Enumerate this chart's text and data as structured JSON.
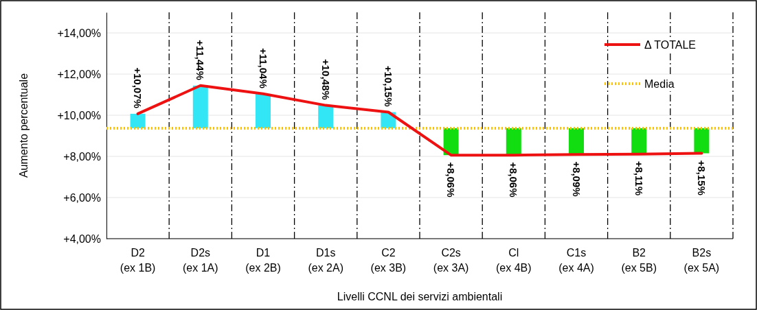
{
  "chart_data": {
    "type": "bar",
    "xlabel": "Livelli CCNL dei servizi ambientali",
    "ylabel": "Aumento percentuale",
    "categories": [
      "D2\n(ex 1B)",
      "D2s\n(ex 1A)",
      "D1\n(ex 2B)",
      "D1s\n(ex 2A)",
      "C2\n(ex 3B)",
      "C2s\n(ex 3A)",
      "Cl\n(ex 4B)",
      "C1s\n(ex 4A)",
      "B2\n(ex 5B)",
      "B2s\n(ex 5A)"
    ],
    "series": [
      {
        "base": [
          9.37,
          9.37,
          9.37,
          9.37,
          9.37,
          9.37,
          9.37,
          9.37,
          9.37,
          9.37
        ],
        "values": [
          0.7,
          2.07,
          1.67,
          1.11,
          0.78,
          -1.31,
          -1.31,
          -1.28,
          -1.26,
          -1.22
        ],
        "colors": [
          "#33e6f5",
          "#33e6f5",
          "#33e6f5",
          "#33e6f5",
          "#33e6f5",
          "#11dd11",
          "#11dd11",
          "#11dd11",
          "#11dd11",
          "#11dd11"
        ]
      },
      {
        "type": "line",
        "name": "Δ TOTALE",
        "color": "#ee1111",
        "values": [
          10.07,
          11.44,
          11.04,
          10.48,
          10.15,
          8.06,
          8.06,
          8.09,
          8.11,
          8.15
        ],
        "value_labels": [
          "+10,07%",
          "+11,44%",
          "+11,04%",
          "+10,48%",
          "+10,15%",
          "+8,06%",
          "+8,06%",
          "+8,09%",
          "+8,11%",
          "+8,15%"
        ]
      }
    ],
    "ref_lines": [
      {
        "axis": "y",
        "value": 9.37,
        "label": "Media",
        "color": "#ffc000",
        "line_style": "dotted"
      }
    ],
    "ylim": [
      4,
      15
    ],
    "yticks": [
      {
        "value": 4,
        "label": "+4,00%"
      },
      {
        "value": 6,
        "label": "+6,00%"
      },
      {
        "value": 8,
        "label": "+8,00%"
      },
      {
        "value": 10,
        "label": "+10,00%"
      },
      {
        "value": 12,
        "label": "+12,00%"
      },
      {
        "value": 14,
        "label": "+14,00%"
      }
    ],
    "grid": true,
    "legend": "top right",
    "marker": "none",
    "line_style": "solid"
  }
}
